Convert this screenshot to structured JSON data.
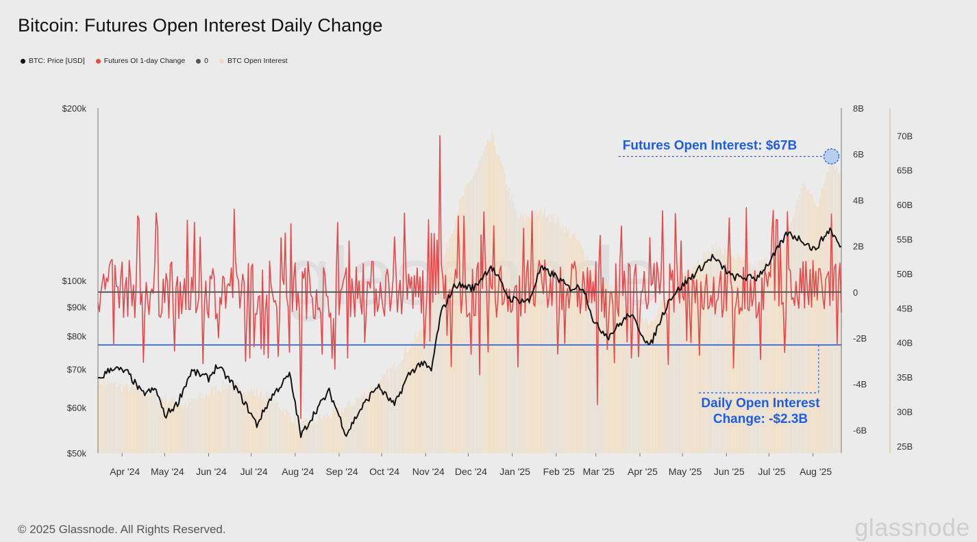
{
  "title": "Bitcoin: Futures Open Interest Daily Change",
  "legend": [
    {
      "label": "BTC: Price [USD]",
      "color": "#111111"
    },
    {
      "label": "Futures OI 1-day Change",
      "color": "#e8484a"
    },
    {
      "label": "0",
      "color": "#555555"
    },
    {
      "label": "BTC Open Interest",
      "color": "#efdcc3"
    }
  ],
  "footer": {
    "copyright": "© 2025 Glassnode. All Rights Reserved.",
    "logo": "glassnode"
  },
  "watermark": "glassnode",
  "chart_data": {
    "type": "line",
    "title": "Bitcoin: Futures Open Interest Daily Change",
    "x_range": [
      "2024-03-15",
      "2025-08-21"
    ],
    "x_ticks": [
      {
        "label": "Apr '24",
        "date": "2024-04-01"
      },
      {
        "label": "May '24",
        "date": "2024-05-01"
      },
      {
        "label": "Jun '24",
        "date": "2024-06-01"
      },
      {
        "label": "Jul '24",
        "date": "2024-07-01"
      },
      {
        "label": "Aug '24",
        "date": "2024-08-01"
      },
      {
        "label": "Sep '24",
        "date": "2024-09-01"
      },
      {
        "label": "Oct '24",
        "date": "2024-10-01"
      },
      {
        "label": "Nov '24",
        "date": "2024-11-01"
      },
      {
        "label": "Dec '24",
        "date": "2024-12-01"
      },
      {
        "label": "Jan '25",
        "date": "2025-01-01"
      },
      {
        "label": "Feb '25",
        "date": "2025-02-01"
      },
      {
        "label": "Mar '25",
        "date": "2025-03-01"
      },
      {
        "label": "Apr '25",
        "date": "2025-04-01"
      },
      {
        "label": "May '25",
        "date": "2025-05-01"
      },
      {
        "label": "Jun '25",
        "date": "2025-06-01"
      },
      {
        "label": "Jul '25",
        "date": "2025-07-01"
      },
      {
        "label": "Aug '25",
        "date": "2025-08-01"
      }
    ],
    "axes": {
      "price": {
        "scale": "log",
        "range": [
          50000,
          200000
        ],
        "ticks": [
          {
            "label": "$200k",
            "value": 200000
          },
          {
            "label": "$100k",
            "value": 100000
          },
          {
            "label": "$90k",
            "value": 90000
          },
          {
            "label": "$80k",
            "value": 80000
          },
          {
            "label": "$70k",
            "value": 70000
          },
          {
            "label": "$60k",
            "value": 60000
          },
          {
            "label": "$50k",
            "value": 50000
          }
        ]
      },
      "oi_change": {
        "scale": "linear",
        "unit": "B",
        "range": [
          -7,
          8
        ],
        "ticks": [
          {
            "label": "8B",
            "value": 8
          },
          {
            "label": "6B",
            "value": 6
          },
          {
            "label": "4B",
            "value": 4
          },
          {
            "label": "2B",
            "value": 2
          },
          {
            "label": "0",
            "value": 0
          },
          {
            "label": "-2B",
            "value": -2
          },
          {
            "label": "-4B",
            "value": -4
          },
          {
            "label": "-6B",
            "value": -6
          }
        ]
      },
      "open_interest": {
        "scale": "linear",
        "unit": "B",
        "range": [
          24,
          74
        ],
        "ticks": [
          {
            "label": "70B",
            "value": 70
          },
          {
            "label": "65B",
            "value": 65
          },
          {
            "label": "60B",
            "value": 60
          },
          {
            "label": "55B",
            "value": 55
          },
          {
            "label": "50B",
            "value": 50
          },
          {
            "label": "45B",
            "value": 45
          },
          {
            "label": "40B",
            "value": 40
          },
          {
            "label": "35B",
            "value": 35
          },
          {
            "label": "30B",
            "value": 30
          },
          {
            "label": "25B",
            "value": 25
          }
        ]
      }
    },
    "series": [
      {
        "name": "BTC: Price [USD]",
        "axis": "price",
        "color": "#111111",
        "points": [
          [
            "2024-03-15",
            67000
          ],
          [
            "2024-03-25",
            70500
          ],
          [
            "2024-04-05",
            69000
          ],
          [
            "2024-04-15",
            63500
          ],
          [
            "2024-04-25",
            64500
          ],
          [
            "2024-05-01",
            58000
          ],
          [
            "2024-05-10",
            61000
          ],
          [
            "2024-05-20",
            69500
          ],
          [
            "2024-06-01",
            67500
          ],
          [
            "2024-06-07",
            71000
          ],
          [
            "2024-06-20",
            65000
          ],
          [
            "2024-07-05",
            56000
          ],
          [
            "2024-07-15",
            62500
          ],
          [
            "2024-07-28",
            68500
          ],
          [
            "2024-08-05",
            53500
          ],
          [
            "2024-08-15",
            59000
          ],
          [
            "2024-08-25",
            64000
          ],
          [
            "2024-09-06",
            53800
          ],
          [
            "2024-09-15",
            59000
          ],
          [
            "2024-09-28",
            65500
          ],
          [
            "2024-10-10",
            60500
          ],
          [
            "2024-10-20",
            68500
          ],
          [
            "2024-10-29",
            72000
          ],
          [
            "2024-11-05",
            69500
          ],
          [
            "2024-11-12",
            88000
          ],
          [
            "2024-11-22",
            98500
          ],
          [
            "2024-12-05",
            97000
          ],
          [
            "2024-12-17",
            106000
          ],
          [
            "2024-12-30",
            93000
          ],
          [
            "2025-01-13",
            92000
          ],
          [
            "2025-01-21",
            105000
          ],
          [
            "2025-01-31",
            102000
          ],
          [
            "2025-02-10",
            97000
          ],
          [
            "2025-02-20",
            97500
          ],
          [
            "2025-02-28",
            84000
          ],
          [
            "2025-03-10",
            80000
          ],
          [
            "2025-03-25",
            87500
          ],
          [
            "2025-04-08",
            76500
          ],
          [
            "2025-04-22",
            93000
          ],
          [
            "2025-05-10",
            103000
          ],
          [
            "2025-05-22",
            110000
          ],
          [
            "2025-06-05",
            101500
          ],
          [
            "2025-06-22",
            101000
          ],
          [
            "2025-07-03",
            109000
          ],
          [
            "2025-07-14",
            121000
          ],
          [
            "2025-07-25",
            117500
          ],
          [
            "2025-08-02",
            113000
          ],
          [
            "2025-08-13",
            123000
          ],
          [
            "2025-08-21",
            113500
          ]
        ]
      },
      {
        "name": "Futures OI 1-day Change",
        "axis": "oi_change",
        "color": "#e8484a",
        "peaks": [
          [
            "2024-11-11",
            6.8
          ],
          [
            "2025-03-02",
            -4.9
          ],
          [
            "2024-08-05",
            -5.5
          ],
          [
            "2024-12-09",
            -3.6
          ],
          [
            "2025-06-06",
            -3.3
          ],
          [
            "2025-07-14",
            3.5
          ],
          [
            "2025-08-14",
            3.4
          ],
          [
            "2025-08-18",
            -2.3
          ]
        ],
        "typical_range": [
          -2,
          2.5
        ]
      },
      {
        "name": "0",
        "axis": "oi_change",
        "color": "#555555",
        "value": 0
      },
      {
        "name": "BTC Open Interest",
        "axis": "open_interest",
        "color": "#efdcc3",
        "points": [
          [
            "2024-03-15",
            34.5
          ],
          [
            "2024-04-15",
            33
          ],
          [
            "2024-05-15",
            31
          ],
          [
            "2024-06-15",
            34
          ],
          [
            "2024-07-15",
            32
          ],
          [
            "2024-08-05",
            28
          ],
          [
            "2024-09-01",
            30
          ],
          [
            "2024-09-30",
            34
          ],
          [
            "2024-10-30",
            42
          ],
          [
            "2024-11-25",
            60
          ],
          [
            "2024-12-18",
            70
          ],
          [
            "2025-01-05",
            58
          ],
          [
            "2025-01-25",
            59
          ],
          [
            "2025-02-15",
            55
          ],
          [
            "2025-03-05",
            49
          ],
          [
            "2025-04-08",
            43
          ],
          [
            "2025-05-01",
            50
          ],
          [
            "2025-05-25",
            54
          ],
          [
            "2025-06-20",
            51
          ],
          [
            "2025-07-10",
            53
          ],
          [
            "2025-07-25",
            63
          ],
          [
            "2025-08-05",
            60
          ],
          [
            "2025-08-14",
            67
          ],
          [
            "2025-08-21",
            64
          ]
        ]
      }
    ],
    "reference_lines": [
      {
        "axis": "oi_change",
        "value": -2.3,
        "color": "#1f5ce0"
      }
    ],
    "annotations": [
      {
        "text": "Futures Open Interest: $67B",
        "date": "2025-08-14",
        "axis": "open_interest",
        "value": 67
      },
      {
        "text_lines": [
          "Daily Open Interest",
          "Change: -$2.3B"
        ],
        "date": "2025-08-18",
        "axis": "oi_change",
        "value": -2.3
      }
    ],
    "grid": false,
    "legend_position": "top-left"
  }
}
